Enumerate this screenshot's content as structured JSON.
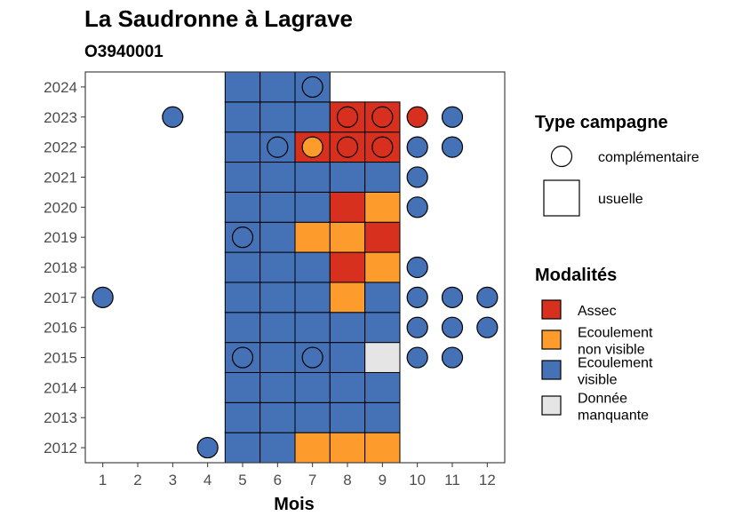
{
  "chart_data": {
    "type": "heatmap",
    "title": "La Saudronne à Lagrave",
    "subtitle": "O3940001",
    "xlabel": "Mois",
    "ylabel": "",
    "x_ticks": [
      1,
      2,
      3,
      4,
      5,
      6,
      7,
      8,
      9,
      10,
      11,
      12
    ],
    "y_ticks": [
      2012,
      2013,
      2014,
      2015,
      2016,
      2017,
      2018,
      2019,
      2020,
      2021,
      2022,
      2023,
      2024
    ],
    "colors": {
      "Assec": "#d7301f",
      "Ecoulement non visible": "#fd9c2c",
      "Ecoulement visible": "#4572b6",
      "Donnée manquante": "#e5e5e5"
    },
    "legend_shape": {
      "title": "Type campagne",
      "entries": [
        {
          "label": "complémentaire",
          "shape": "circle"
        },
        {
          "label": "usuelle",
          "shape": "square"
        }
      ]
    },
    "legend_fill": {
      "title": "Modalités",
      "entries": [
        {
          "key": "Assec",
          "lines": [
            "Assec"
          ]
        },
        {
          "key": "Ecoulement non visible",
          "lines": [
            "Ecoulement",
            "non visible"
          ]
        },
        {
          "key": "Ecoulement visible",
          "lines": [
            "Ecoulement",
            "visible"
          ]
        },
        {
          "key": "Donnée manquante",
          "lines": [
            "Donnée",
            "manquante"
          ]
        }
      ]
    },
    "usuelle": [
      {
        "year": 2012,
        "months": [
          [
            "Ecoulement visible",
            5
          ],
          [
            "Ecoulement visible",
            6
          ],
          [
            "Ecoulement non visible",
            7
          ],
          [
            "Ecoulement non visible",
            8
          ],
          [
            "Ecoulement non visible",
            9
          ]
        ]
      },
      {
        "year": 2013,
        "months": [
          [
            "Ecoulement visible",
            5
          ],
          [
            "Ecoulement visible",
            6
          ],
          [
            "Ecoulement visible",
            7
          ],
          [
            "Ecoulement visible",
            8
          ],
          [
            "Ecoulement visible",
            9
          ]
        ]
      },
      {
        "year": 2014,
        "months": [
          [
            "Ecoulement visible",
            5
          ],
          [
            "Ecoulement visible",
            6
          ],
          [
            "Ecoulement visible",
            7
          ],
          [
            "Ecoulement visible",
            8
          ],
          [
            "Ecoulement visible",
            9
          ]
        ]
      },
      {
        "year": 2015,
        "months": [
          [
            "Ecoulement visible",
            5
          ],
          [
            "Ecoulement visible",
            6
          ],
          [
            "Ecoulement visible",
            7
          ],
          [
            "Ecoulement visible",
            8
          ],
          [
            "Donnée manquante",
            9
          ]
        ]
      },
      {
        "year": 2016,
        "months": [
          [
            "Ecoulement visible",
            5
          ],
          [
            "Ecoulement visible",
            6
          ],
          [
            "Ecoulement visible",
            7
          ],
          [
            "Ecoulement visible",
            8
          ],
          [
            "Ecoulement visible",
            9
          ]
        ]
      },
      {
        "year": 2017,
        "months": [
          [
            "Ecoulement visible",
            5
          ],
          [
            "Ecoulement visible",
            6
          ],
          [
            "Ecoulement visible",
            7
          ],
          [
            "Ecoulement non visible",
            8
          ],
          [
            "Ecoulement visible",
            9
          ]
        ]
      },
      {
        "year": 2018,
        "months": [
          [
            "Ecoulement visible",
            5
          ],
          [
            "Ecoulement visible",
            6
          ],
          [
            "Ecoulement visible",
            7
          ],
          [
            "Assec",
            8
          ],
          [
            "Ecoulement non visible",
            9
          ]
        ]
      },
      {
        "year": 2019,
        "months": [
          [
            "Ecoulement visible",
            5
          ],
          [
            "Ecoulement visible",
            6
          ],
          [
            "Ecoulement non visible",
            7
          ],
          [
            "Ecoulement non visible",
            8
          ],
          [
            "Assec",
            9
          ]
        ]
      },
      {
        "year": 2020,
        "months": [
          [
            "Ecoulement visible",
            5
          ],
          [
            "Ecoulement visible",
            6
          ],
          [
            "Ecoulement visible",
            7
          ],
          [
            "Assec",
            8
          ],
          [
            "Ecoulement non visible",
            9
          ]
        ]
      },
      {
        "year": 2021,
        "months": [
          [
            "Ecoulement visible",
            5
          ],
          [
            "Ecoulement visible",
            6
          ],
          [
            "Ecoulement visible",
            7
          ],
          [
            "Ecoulement visible",
            8
          ],
          [
            "Ecoulement visible",
            9
          ]
        ]
      },
      {
        "year": 2022,
        "months": [
          [
            "Ecoulement visible",
            5
          ],
          [
            "Ecoulement visible",
            6
          ],
          [
            "Assec",
            7
          ],
          [
            "Assec",
            8
          ],
          [
            "Assec",
            9
          ]
        ]
      },
      {
        "year": 2023,
        "months": [
          [
            "Ecoulement visible",
            5
          ],
          [
            "Ecoulement visible",
            6
          ],
          [
            "Ecoulement visible",
            7
          ],
          [
            "Assec",
            8
          ],
          [
            "Assec",
            9
          ]
        ]
      },
      {
        "year": 2024,
        "months": [
          [
            "Ecoulement visible",
            5
          ],
          [
            "Ecoulement visible",
            6
          ],
          [
            "Ecoulement visible",
            7
          ]
        ]
      }
    ],
    "complementaire": [
      {
        "year": 2012,
        "month": 4,
        "value": "Ecoulement visible"
      },
      {
        "year": 2015,
        "month": 5,
        "value": "Ecoulement visible"
      },
      {
        "year": 2015,
        "month": 7,
        "value": "Ecoulement visible"
      },
      {
        "year": 2015,
        "month": 10,
        "value": "Ecoulement visible"
      },
      {
        "year": 2015,
        "month": 11,
        "value": "Ecoulement visible"
      },
      {
        "year": 2016,
        "month": 10,
        "value": "Ecoulement visible"
      },
      {
        "year": 2016,
        "month": 11,
        "value": "Ecoulement visible"
      },
      {
        "year": 2016,
        "month": 12,
        "value": "Ecoulement visible"
      },
      {
        "year": 2017,
        "month": 1,
        "value": "Ecoulement visible"
      },
      {
        "year": 2017,
        "month": 10,
        "value": "Ecoulement visible"
      },
      {
        "year": 2017,
        "month": 11,
        "value": "Ecoulement visible"
      },
      {
        "year": 2017,
        "month": 12,
        "value": "Ecoulement visible"
      },
      {
        "year": 2018,
        "month": 10,
        "value": "Ecoulement visible"
      },
      {
        "year": 2019,
        "month": 5,
        "value": "Ecoulement visible"
      },
      {
        "year": 2020,
        "month": 10,
        "value": "Ecoulement visible"
      },
      {
        "year": 2021,
        "month": 10,
        "value": "Ecoulement visible"
      },
      {
        "year": 2022,
        "month": 6,
        "value": "Ecoulement visible"
      },
      {
        "year": 2022,
        "month": 7,
        "value": "Ecoulement non visible"
      },
      {
        "year": 2022,
        "month": 8,
        "value": "Assec"
      },
      {
        "year": 2022,
        "month": 9,
        "value": "Assec"
      },
      {
        "year": 2022,
        "month": 10,
        "value": "Ecoulement visible"
      },
      {
        "year": 2022,
        "month": 11,
        "value": "Ecoulement visible"
      },
      {
        "year": 2023,
        "month": 3,
        "value": "Ecoulement visible"
      },
      {
        "year": 2023,
        "month": 8,
        "value": "Assec"
      },
      {
        "year": 2023,
        "month": 9,
        "value": "Assec"
      },
      {
        "year": 2023,
        "month": 10,
        "value": "Assec"
      },
      {
        "year": 2023,
        "month": 11,
        "value": "Ecoulement visible"
      },
      {
        "year": 2024,
        "month": 7,
        "value": "Ecoulement visible"
      }
    ],
    "xlim": [
      0.5,
      12.5
    ],
    "ylim": [
      2011.5,
      2024.5
    ],
    "grid": false,
    "legend_position": "right"
  }
}
